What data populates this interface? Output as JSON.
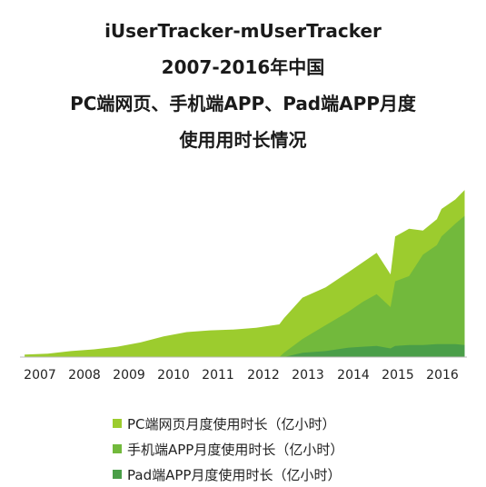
{
  "title_lines": [
    "iUserTracker-mUserTracker",
    "2007-2016年中国",
    "PC端网页、手机端APP、Pad端APP月度",
    "使用用时长情况"
  ],
  "chart_data": {
    "type": "area",
    "stacked": true,
    "x_axis_labels": [
      "2007",
      "2008",
      "2009",
      "2010",
      "2011",
      "2012",
      "2013",
      "2014",
      "2015",
      "2016"
    ],
    "x": [
      2007.0,
      2007.5,
      2008.0,
      2008.5,
      2009.0,
      2009.5,
      2010.0,
      2010.5,
      2011.0,
      2011.5,
      2012.0,
      2012.5,
      2012.6,
      2013.0,
      2013.5,
      2014.0,
      2014.3,
      2014.6,
      2014.9,
      2015.0,
      2015.3,
      2015.6,
      2015.9,
      2016.0,
      2016.3,
      2016.5
    ],
    "series": [
      {
        "name": "PC端网页月度使用时长（亿小时）",
        "color": "#9ccc2e",
        "values": [
          3,
          4,
          7,
          9,
          12,
          17,
          24,
          29,
          31,
          32,
          34,
          38,
          40,
          48,
          44,
          46,
          46,
          48,
          38,
          52,
          55,
          28,
          30,
          32,
          28,
          30
        ]
      },
      {
        "name": "手机端APP月度使用时长（亿小时）",
        "color": "#72b93c",
        "values": [
          0,
          0,
          0,
          0,
          0,
          0,
          0,
          0,
          0,
          0,
          0,
          0,
          5,
          16,
          30,
          42,
          52,
          60,
          48,
          75,
          80,
          105,
          115,
          125,
          140,
          150
        ]
      },
      {
        "name": "Pad端APP月度使用时长（亿小时）",
        "color": "#4a9e48",
        "values": [
          0,
          0,
          0,
          0,
          0,
          0,
          0,
          0,
          0,
          0,
          0,
          0,
          0,
          5,
          7,
          11,
          12,
          13,
          10,
          13,
          14,
          14,
          15,
          15,
          15,
          14
        ]
      }
    ],
    "xlim": [
      2006.9,
      2016.55
    ],
    "ylim": [
      0,
      230
    ],
    "legend_position": "bottom",
    "grid": false
  }
}
